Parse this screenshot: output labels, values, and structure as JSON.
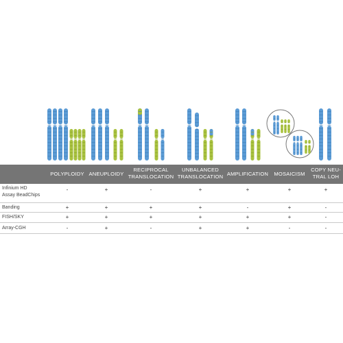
{
  "colors": {
    "blue_chromosome": "#5b9bd5",
    "green_chromosome": "#a9c23f",
    "header_band": "#757575",
    "header_text": "#ffffff"
  },
  "columns": [
    {
      "label": "POLYPLOIDY"
    },
    {
      "label": "ANEUPLOIDY"
    },
    {
      "label": "RECIPROCAL\nTRANSLOCATION"
    },
    {
      "label": "UNBALANCED\nTRANSLOCATION"
    },
    {
      "label": "AMPLIFICATION"
    },
    {
      "label": "MOSAICISM"
    },
    {
      "label": "COPY NEU-\nTRAL LOH"
    }
  ],
  "rows": [
    {
      "label": "Infinium HD\nAssay BeadChips",
      "values": [
        "-",
        "+",
        "-",
        "+",
        "+",
        "+",
        "+"
      ]
    },
    {
      "label": "Banding",
      "values": [
        "+",
        "+",
        "+",
        "+",
        "-",
        "+",
        "-"
      ]
    },
    {
      "label": "FISH/SKY",
      "values": [
        "+",
        "+",
        "+",
        "+",
        "+",
        "+",
        "-"
      ]
    },
    {
      "label": "Array-CGH",
      "values": [
        "-",
        "+",
        "-",
        "+",
        "+",
        "-",
        "-"
      ]
    }
  ]
}
